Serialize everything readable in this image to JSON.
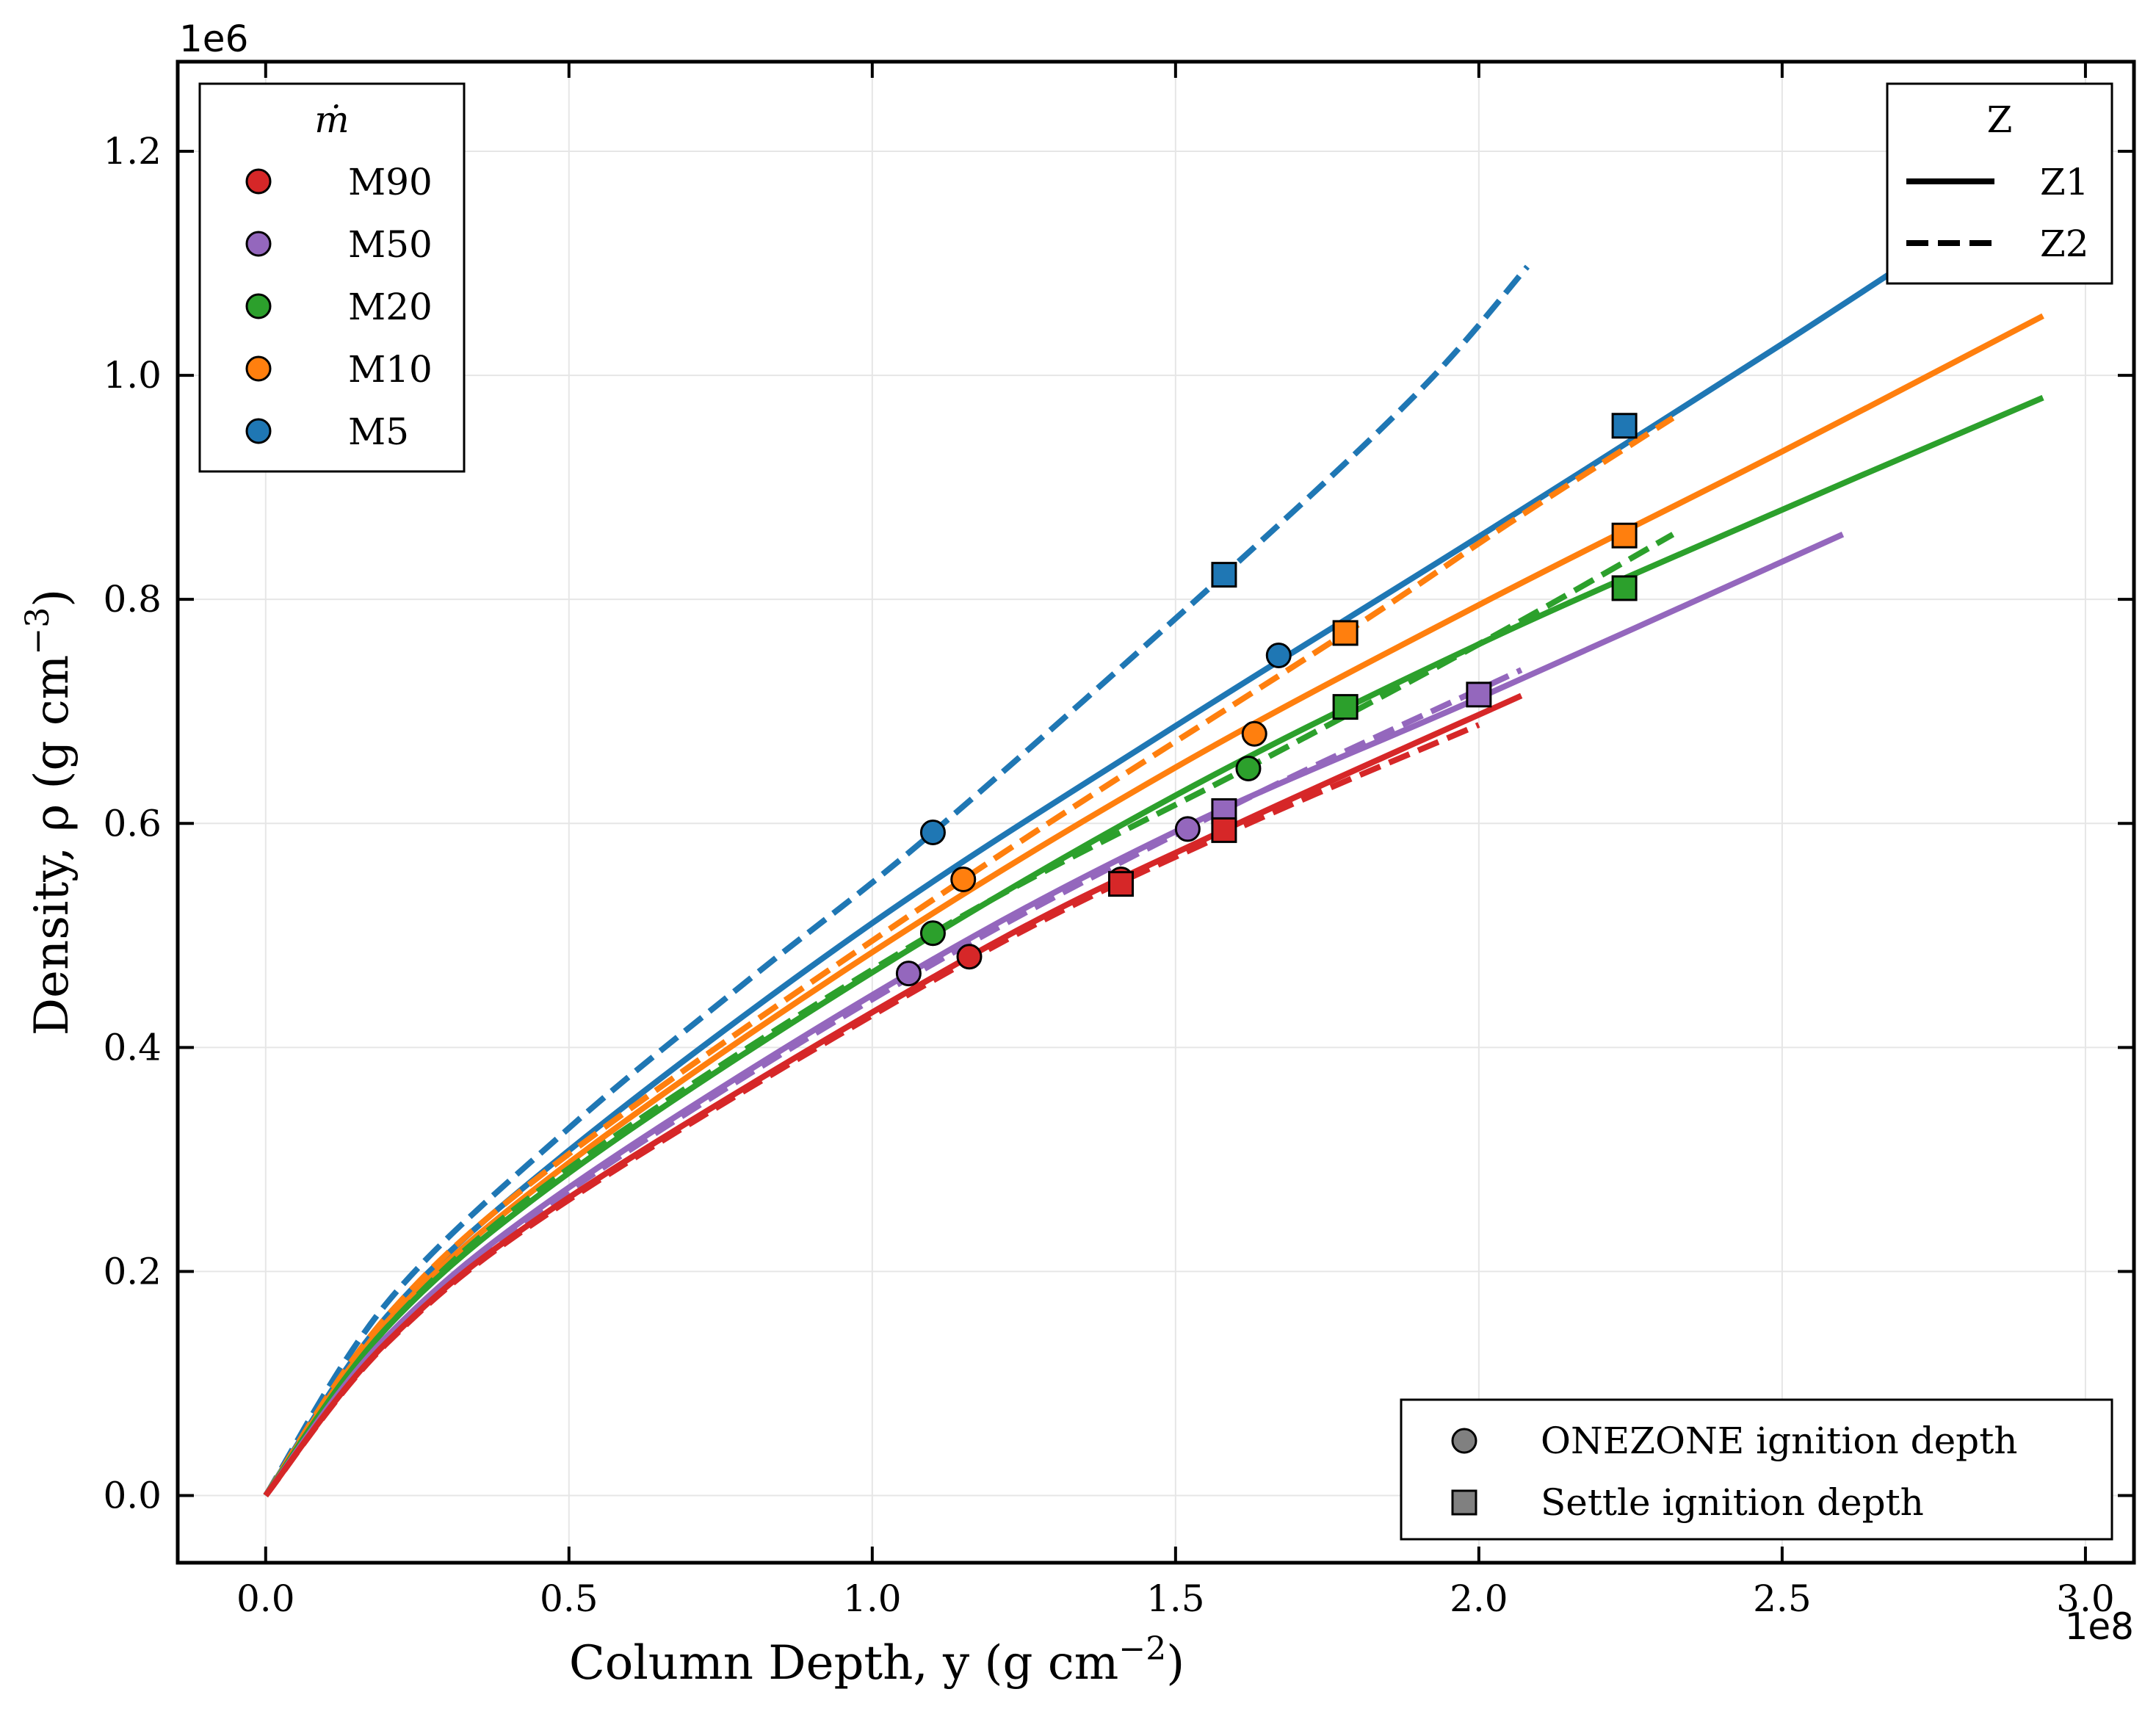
{
  "chart_data": {
    "type": "line",
    "xlabel": "Column Depth, y (g cm",
    "xlabel_sup": "−2",
    "xlabel_tail": ")",
    "ylabel": "Density, ρ (g cm",
    "ylabel_sup": "−3",
    "ylabel_tail": ")",
    "x_scale_label": "1e8",
    "y_scale_label": "1e6",
    "x_scale": 100000000,
    "y_scale": 1000000,
    "xlim": [
      -14500000.0,
      308000000.0
    ],
    "ylim": [
      -60000,
      1280000
    ],
    "x_ticks": [
      0,
      50000000.0,
      100000000.0,
      150000000.0,
      200000000.0,
      250000000.0,
      300000000.0
    ],
    "x_tick_labels": [
      "0.0",
      "0.5",
      "1.0",
      "1.5",
      "2.0",
      "2.5",
      "3.0"
    ],
    "y_ticks": [
      0,
      200000,
      400000,
      600000,
      800000,
      1000000,
      1200000
    ],
    "y_tick_labels": [
      "0.0",
      "0.2",
      "0.4",
      "0.6",
      "0.8",
      "1.0",
      "1.2"
    ],
    "grid": true,
    "colors": {
      "M90": "#d62728",
      "M50": "#9467bd",
      "M20": "#2ca02c",
      "M10": "#ff7f0e",
      "M5": "#1f77b4"
    },
    "series": [
      {
        "name": "M5",
        "z": "Z1",
        "style": "solid",
        "x": [
          0,
          20000000.0,
          50000000.0,
          100000000.0,
          150000000.0,
          200000000.0,
          250000000.0,
          290000000.0
        ],
        "y": [
          0,
          160000,
          308000,
          511000,
          687000,
          856000,
          1028000,
          1170000
        ]
      },
      {
        "name": "M5",
        "z": "Z2",
        "style": "dashed",
        "x": [
          0,
          20000000.0,
          50000000.0,
          80000000.0,
          110000000.0,
          158000000.0,
          190000000.0,
          208000000.0
        ],
        "y": [
          0,
          172000,
          328000,
          462000,
          592000,
          822000,
          985000,
          1097000
        ]
      },
      {
        "name": "M10",
        "z": "Z1",
        "style": "solid",
        "x": [
          0,
          20000000.0,
          50000000.0,
          100000000.0,
          150000000.0,
          200000000.0,
          250000000.0,
          293000000.0
        ],
        "y": [
          0,
          155000,
          297000,
          485000,
          650000,
          795000,
          932000,
          1053000
        ]
      },
      {
        "name": "M10",
        "z": "Z2",
        "style": "dashed",
        "x": [
          0,
          20000000.0,
          50000000.0,
          115000000.0,
          178000000.0,
          205000000.0,
          232000000.0
        ],
        "y": [
          0,
          160000,
          305000,
          550000,
          770000,
          868000,
          962000
        ]
      },
      {
        "name": "M20",
        "z": "Z1",
        "style": "solid",
        "x": [
          0,
          20000000.0,
          50000000.0,
          100000000.0,
          150000000.0,
          200000000.0,
          250000000.0,
          293000000.0
        ],
        "y": [
          0,
          150000,
          288000,
          467000,
          625000,
          760000,
          880000,
          980000
        ]
      },
      {
        "name": "M20",
        "z": "Z2",
        "style": "dashed",
        "x": [
          0,
          20000000.0,
          50000000.0,
          110000000.0,
          162000000.0,
          200000000.0,
          232000000.0
        ],
        "y": [
          0,
          150000,
          292000,
          502000,
          650000,
          760000,
          858000
        ]
      },
      {
        "name": "M50",
        "z": "Z1",
        "style": "solid",
        "x": [
          0,
          20000000.0,
          50000000.0,
          106000000.0,
          152000000.0,
          200000000.0,
          260000000.0
        ],
        "y": [
          0,
          142000,
          275000,
          466000,
          598000,
          712000,
          858000
        ]
      },
      {
        "name": "M50",
        "z": "Z2",
        "style": "dashed",
        "x": [
          0,
          20000000.0,
          50000000.0,
          106000000.0,
          158000000.0,
          207000000.0
        ],
        "y": [
          0,
          140000,
          272000,
          462000,
          612000,
          737000
        ]
      },
      {
        "name": "M90",
        "z": "Z1",
        "style": "solid",
        "x": [
          0,
          20000000.0,
          50000000.0,
          116000000.0,
          158000000.0,
          207000000.0
        ],
        "y": [
          0,
          137000,
          266000,
          481000,
          594000,
          714000
        ]
      },
      {
        "name": "M90",
        "z": "Z2",
        "style": "dashed",
        "x": [
          0,
          20000000.0,
          50000000.0,
          116000000.0,
          158000000.0,
          200000000.0
        ],
        "y": [
          0,
          136000,
          264000,
          478000,
          590000,
          688000
        ]
      }
    ],
    "onezone_points": [
      {
        "name": "M5",
        "x": 110000000.0,
        "y": 592000
      },
      {
        "name": "M5",
        "x": 167000000.0,
        "y": 750000
      },
      {
        "name": "M10",
        "x": 115000000.0,
        "y": 550000
      },
      {
        "name": "M10",
        "x": 163000000.0,
        "y": 680000
      },
      {
        "name": "M20",
        "x": 110000000.0,
        "y": 502000
      },
      {
        "name": "M20",
        "x": 162000000.0,
        "y": 649000
      },
      {
        "name": "M50",
        "x": 106000000.0,
        "y": 466000
      },
      {
        "name": "M50",
        "x": 152000000.0,
        "y": 595000
      },
      {
        "name": "M90",
        "x": 116000000.0,
        "y": 481000
      },
      {
        "name": "M90",
        "x": 141000000.0,
        "y": 550000
      }
    ],
    "settle_points": [
      {
        "name": "M5",
        "x": 158000000.0,
        "y": 822000
      },
      {
        "name": "M5",
        "x": 224000000.0,
        "y": 955000
      },
      {
        "name": "M10",
        "x": 178000000.0,
        "y": 770000
      },
      {
        "name": "M10",
        "x": 224000000.0,
        "y": 857000
      },
      {
        "name": "M20",
        "x": 178000000.0,
        "y": 704000
      },
      {
        "name": "M20",
        "x": 224000000.0,
        "y": 810000
      },
      {
        "name": "M50",
        "x": 158000000.0,
        "y": 611000
      },
      {
        "name": "M50",
        "x": 200000000.0,
        "y": 715000
      },
      {
        "name": "M90",
        "x": 141000000.0,
        "y": 546000
      },
      {
        "name": "M90",
        "x": 158000000.0,
        "y": 594000
      }
    ],
    "legend_mdot": {
      "title": "ṁ",
      "entries": [
        "M90",
        "M50",
        "M20",
        "M10",
        "M5"
      ],
      "placement": "top-left"
    },
    "legend_z": {
      "title": "Z",
      "entries": [
        "Z1",
        "Z2"
      ],
      "placement": "top-right"
    },
    "legend_markers": {
      "entries": [
        "ONEZONE ignition depth",
        "Settle ignition depth"
      ],
      "placement": "bottom-right"
    }
  }
}
